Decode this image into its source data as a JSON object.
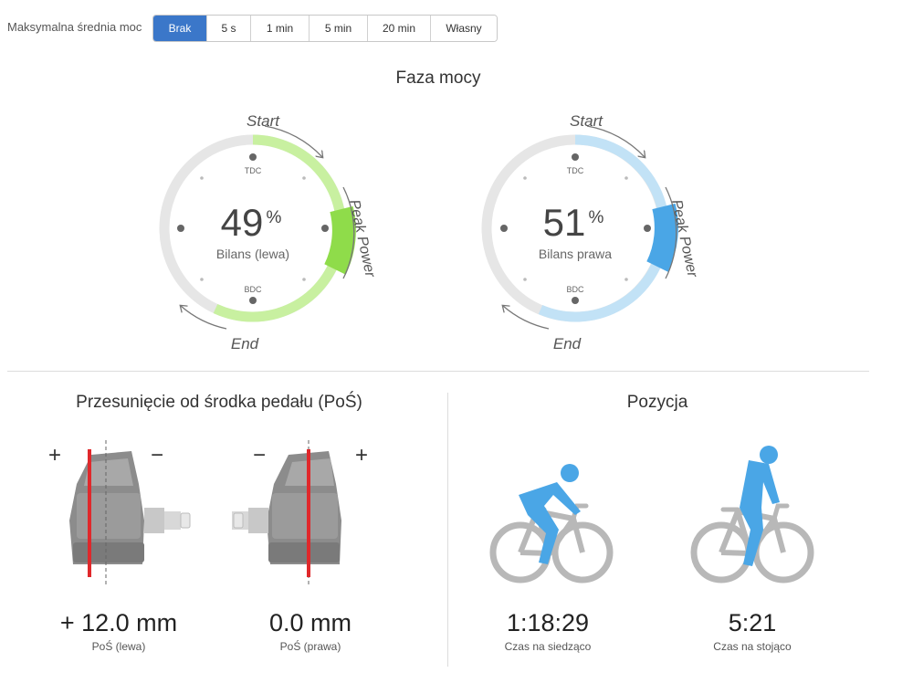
{
  "filter": {
    "label": "Maksymalna średnia moc",
    "options": [
      "Brak",
      "5 s",
      "1 min",
      "5 min",
      "20 min",
      "Własny"
    ],
    "selected": "Brak"
  },
  "power_phase": {
    "title": "Faza mocy",
    "left": {
      "value": "49",
      "unit": "%",
      "label": "Bilans (lewa)",
      "tdc": "TDC",
      "bdc": "BDC",
      "start": "Start",
      "end": "End",
      "peak": "Peak Power",
      "color_phase": "#c8f0a0",
      "color_peak": "#8fdc4a"
    },
    "right": {
      "value": "51",
      "unit": "%",
      "label": "Bilans prawa",
      "tdc": "TDC",
      "bdc": "BDC",
      "start": "Start",
      "end": "End",
      "peak": "Peak Power",
      "color_phase": "#c2e2f6",
      "color_peak": "#4aa6e6"
    }
  },
  "platform_offset": {
    "title": "Przesunięcie od środka pedału (PoŚ)",
    "left": {
      "value": "+ 12.0 mm",
      "label": "PoŚ (lewa)",
      "plus": "+",
      "minus": "−"
    },
    "right": {
      "value": "0.0 mm",
      "label": "PoŚ (prawa)",
      "plus": "+",
      "minus": "−"
    }
  },
  "position": {
    "title": "Pozycja",
    "seated": {
      "value": "1:18:29",
      "label": "Czas na siedząco"
    },
    "standing": {
      "value": "5:21",
      "label": "Czas na stojąco"
    }
  },
  "colors": {
    "accent": "#3b77c9",
    "red_line": "#e0282b",
    "rider": "#4aa6e6",
    "bike": "#b8b8b8"
  }
}
